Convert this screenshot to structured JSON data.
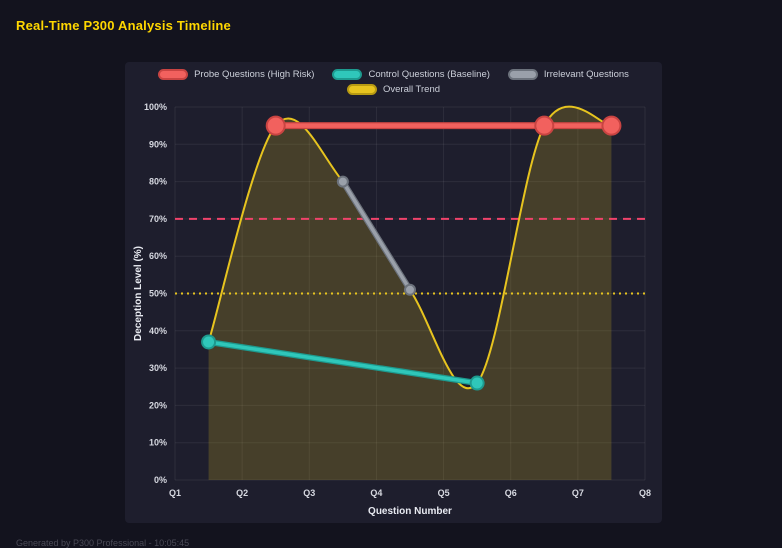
{
  "page": {
    "title": "Real-Time P300 Analysis Timeline",
    "footer": "Generated by P300 Professional - 10:05:45"
  },
  "chart_data": {
    "type": "line",
    "title": "Real-Time P300 Analysis Timeline",
    "xlabel": "Question Number",
    "ylabel": "Deception Level (%)",
    "x_ticks": [
      "Q1",
      "Q2",
      "Q3",
      "Q4",
      "Q5",
      "Q6",
      "Q7",
      "Q8"
    ],
    "y_ticks": [
      "0%",
      "10%",
      "20%",
      "30%",
      "40%",
      "50%",
      "60%",
      "70%",
      "80%",
      "90%",
      "100%"
    ],
    "xlim": [
      1,
      8
    ],
    "ylim": [
      0,
      100
    ],
    "grid": true,
    "legend_position": "top",
    "series": [
      {
        "name": "Probe Questions (High Risk)",
        "color": "#f2615e",
        "border": "#c94442",
        "width": 4.5,
        "point_radius": 9,
        "x": [
          2.5,
          6.5,
          7.5
        ],
        "y": [
          95,
          95,
          95
        ]
      },
      {
        "name": "Control Questions (Baseline)",
        "color": "#2fc7ba",
        "border": "#1d9a8f",
        "width": 3.5,
        "point_radius": 6.5,
        "x": [
          1.5,
          5.5
        ],
        "y": [
          37,
          26
        ]
      },
      {
        "name": "Irrelevant Questions",
        "color": "#9aa0aa",
        "border": "#6c727c",
        "width": 3.5,
        "point_radius": 5,
        "x": [
          3.5,
          4.5
        ],
        "y": [
          80,
          51
        ]
      },
      {
        "name": "Overall Trend",
        "color": "#e7c41f",
        "border": "#b79a12",
        "width": 2,
        "smooth": true,
        "fill": true,
        "fill_color": "rgba(232,197,29,0.2)",
        "x": [
          1.5,
          2.5,
          3.5,
          4.5,
          5.5,
          6.5,
          7.5
        ],
        "y": [
          37,
          95,
          80,
          51,
          26,
          95,
          95
        ]
      }
    ],
    "reference_lines": [
      {
        "name": "high-risk-threshold-line",
        "y": 70,
        "color": "#f0436b",
        "dash": "8 6"
      },
      {
        "name": "baseline-threshold-line",
        "y": 50,
        "color": "#e7c41f",
        "dash": "2 4"
      }
    ]
  }
}
